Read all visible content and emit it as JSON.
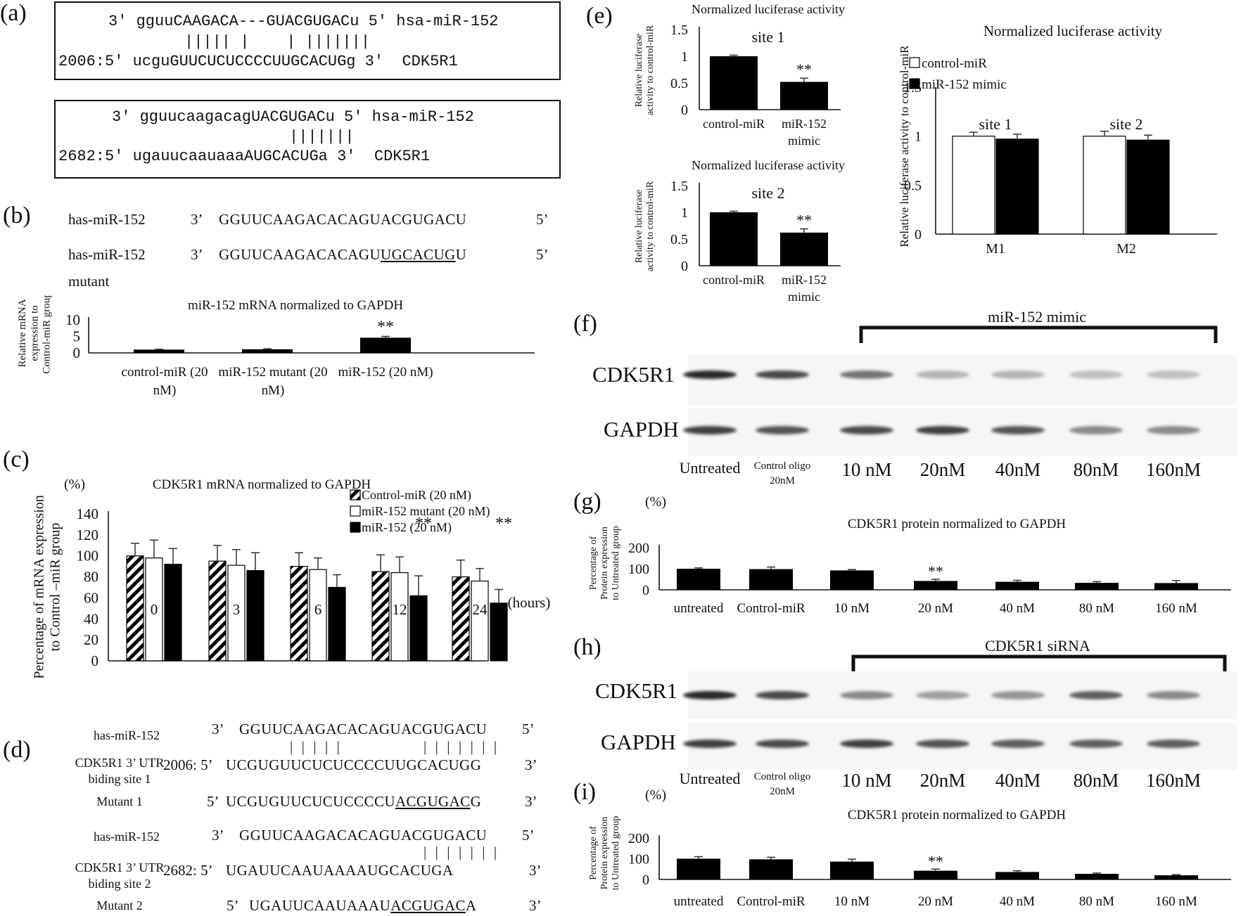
{
  "panel_labels": {
    "a": "(a)",
    "b": "(b)",
    "c": "(c)",
    "d": "(d)",
    "e": "(e)",
    "f": "(f)",
    "g": "(g)",
    "h": "(h)",
    "i": "(i)"
  },
  "panel_a": {
    "box1": {
      "line1": "3' gguuCAAGACA---GUACGUGACu 5' hsa-miR-152",
      "bars": "||||| |    | |||||||",
      "line2": "2006:5' ucguGUUCUCUCCCCUUGCACUGg 3'  CDK5R1"
    },
    "box2": {
      "line1": "3' gguucaagacagUACGUGACu 5' hsa-miR-152",
      "bars": "|||||||",
      "line2": "2682:5' ugauucaauaaaAUGCACUGa 3'  CDK5R1"
    }
  },
  "panel_b": {
    "row1": {
      "name": "has-miR-152",
      "p3": "3’",
      "seq": "GGUUCAAGACACAGUACGUGACU",
      "p5": "5’"
    },
    "row2": {
      "name": "has-miR-152",
      "name2": "mutant",
      "p3": "3’",
      "seq_a": "GGUUCAAGACACAGU",
      "seq_b": "UGCACUG",
      "seq_c": "U",
      "p5": "5’"
    }
  },
  "panel_d": {
    "r1": {
      "name": "has-miR-152",
      "p3": "3’",
      "seq": "GGUUCAAGACACAGUACGUGACU",
      "p5": "5’"
    },
    "r2": {
      "name": "CDK5R1 3’ UTR",
      "name2": "biding site 1",
      "pre": "2006: 5’",
      "seq": "UCGUGUUCUCUCCCCUUGCACUGG",
      "p3": "3’"
    },
    "r3": {
      "name": "Mutant 1",
      "pre": "5’",
      "seq_a": "UCGUGUUCUCUCCCCU",
      "seq_b": "ACGUGAC",
      "seq_c": "G",
      "p3": "3’"
    },
    "r4": {
      "name": "has-miR-152",
      "p3": "3’",
      "seq": "GGUUCAAGACACAGUACGUGACU",
      "p5": "5’"
    },
    "r5": {
      "name": "CDK5R1 3’ UTR",
      "name2": "biding site 2",
      "pre": "2682: 5’",
      "seq": "UGAUUCAAUAAAAUGCACUGA",
      "p3": "3’"
    },
    "r6": {
      "name": "Mutant 2",
      "pre": "5’",
      "seq_a": "UGAUUCAAUAAAU",
      "seq_b": "ACGUGAC",
      "seq_c": "A",
      "p3": "3’"
    }
  },
  "blots": {
    "f": {
      "bracket_label": "miR-152 mimic",
      "row1": "CDK5R1",
      "row2": "GAPDH",
      "lanes": [
        "Untreated",
        "Control oligo",
        "10 nM",
        "20nM",
        "40nM",
        "80nM",
        "160nM"
      ],
      "lane2_sub": "20nM"
    },
    "h": {
      "bracket_label": "CDK5R1 siRNA",
      "row1": "CDK5R1",
      "row2": "GAPDH",
      "lanes": [
        "Untreated",
        "Control oligo",
        "10 nM",
        "20nM",
        "40nM",
        "80nM",
        "160nM"
      ],
      "lane2_sub": "20nM"
    }
  },
  "colors": {
    "bar_dark": "#000000",
    "bar_white": "#ffffff",
    "axis": "#111111"
  },
  "chart_data": [
    {
      "id": "b",
      "type": "bar",
      "title": "miR-152 mRNA normalized to GAPDH",
      "ylabel": "Relative mRNA expression to Control-miR group",
      "ylim": [
        0,
        10
      ],
      "yticks": [
        0,
        5,
        10
      ],
      "categories": [
        "control-miR (20 nM)",
        "miR-152 mutant (20 nM)",
        "miR-152 (20 nM)"
      ],
      "cat_lines": [
        [
          "control-miR (20",
          "nM)"
        ],
        [
          "miR-152 mutant (20",
          "nM)"
        ],
        [
          "miR-152 (20 nM)",
          ""
        ]
      ],
      "values": [
        1,
        1.1,
        4.6
      ],
      "errors": [
        0.1,
        0.15,
        0.4
      ],
      "annotations": [
        "",
        "",
        "**"
      ]
    },
    {
      "id": "c",
      "type": "bar",
      "title": "CDK5R1 mRNA normalized to GAPDH",
      "ylabel": "Percentage of mRNA expression to Control -miR group",
      "yunit": "(%)",
      "xunit": "(hours)",
      "ylim": [
        0,
        140
      ],
      "yticks": [
        0,
        20,
        40,
        60,
        80,
        100,
        120,
        140
      ],
      "categories": [
        "0",
        "3",
        "6",
        "12",
        "24"
      ],
      "series": [
        {
          "name": "Control-miR (20 nM)",
          "values": [
            100,
            95,
            90,
            85,
            80
          ],
          "errors": [
            12,
            15,
            13,
            16,
            16
          ]
        },
        {
          "name": "miR-152 mutant (20 nM)",
          "values": [
            98,
            91,
            87,
            84,
            76
          ],
          "errors": [
            17,
            15,
            11,
            15,
            12
          ]
        },
        {
          "name": "miR-152 (20 nM)",
          "values": [
            92,
            86,
            70,
            62,
            55
          ],
          "errors": [
            15,
            17,
            12,
            19,
            13
          ]
        }
      ],
      "annotations": [
        "",
        "",
        "",
        "**",
        "**"
      ]
    },
    {
      "id": "e1",
      "type": "bar",
      "title": "Normalized luciferase activity",
      "subtitle": "site 1",
      "ylabel": "Relative luciferase activity to control-miR",
      "ylim": [
        0,
        1.5
      ],
      "yticks": [
        "0",
        "0.5",
        "1",
        "1.5"
      ],
      "categories": [
        "control-miR",
        "miR-152 mimic"
      ],
      "cat_lines": [
        [
          "control-miR",
          ""
        ],
        [
          "miR-152",
          "mimic"
        ]
      ],
      "values": [
        1.0,
        0.52
      ],
      "errors": [
        0.02,
        0.07
      ],
      "annotations": [
        "",
        "**"
      ]
    },
    {
      "id": "e2",
      "type": "bar",
      "title": "Normalized luciferase activity",
      "subtitle": "site 2",
      "ylabel": "Relative luciferase activity to control-miR",
      "ylim": [
        0,
        1.5
      ],
      "yticks": [
        "0",
        "0.5",
        "1",
        "1.5"
      ],
      "categories": [
        "control-miR",
        "miR-152 mimic"
      ],
      "cat_lines": [
        [
          "control-miR",
          ""
        ],
        [
          "miR-152",
          "mimic"
        ]
      ],
      "values": [
        1.0,
        0.62
      ],
      "errors": [
        0.02,
        0.07
      ],
      "annotations": [
        "",
        "**"
      ]
    },
    {
      "id": "e3",
      "type": "bar",
      "title": "Normalized luciferase activity",
      "ylabel": "Relative luciferase activity to control-miR",
      "ylim": [
        0,
        1.5
      ],
      "yticks": [
        "0",
        "0.5",
        "1",
        "1.5"
      ],
      "categories": [
        "M1",
        "M2"
      ],
      "group_labels": [
        "site 1",
        "site 2"
      ],
      "series": [
        {
          "name": "control-miR",
          "values": [
            1.0,
            1.0
          ],
          "errors": [
            0.04,
            0.05
          ]
        },
        {
          "name": "miR-152 mimic",
          "values": [
            0.97,
            0.96
          ],
          "errors": [
            0.05,
            0.05
          ]
        }
      ]
    },
    {
      "id": "g",
      "type": "bar",
      "title": "CDK5R1 protein normalized to GAPDH",
      "ylabel": "Percentage of Protein expression to Untreated group",
      "yunit": "(%)",
      "ylim": [
        0,
        200
      ],
      "yticks": [
        0,
        100,
        200
      ],
      "categories": [
        "untreated",
        "Control-miR",
        "10 nM",
        "20 nM",
        "40 nM",
        "80 nM",
        "160 nM"
      ],
      "values": [
        100,
        98,
        92,
        42,
        38,
        33,
        32
      ],
      "errors": [
        4,
        10,
        4,
        8,
        7,
        6,
        12
      ],
      "annotations": [
        "",
        "",
        "",
        "**",
        "",
        "",
        ""
      ]
    },
    {
      "id": "i",
      "type": "bar",
      "title": "CDK5R1 protein normalized to GAPDH",
      "ylabel": "Percentage of Protein expression to Untreated group",
      "yunit": "(%)",
      "ylim": [
        0,
        200
      ],
      "yticks": [
        0,
        100,
        200
      ],
      "categories": [
        "untreated",
        "Control-miR",
        "10 nM",
        "20 nM",
        "40 nM",
        "80 nM",
        "160 nM"
      ],
      "values": [
        100,
        97,
        86,
        42,
        36,
        27,
        20
      ],
      "errors": [
        10,
        10,
        12,
        8,
        6,
        4,
        3
      ],
      "annotations": [
        "",
        "",
        "",
        "**",
        "",
        "",
        ""
      ]
    }
  ]
}
